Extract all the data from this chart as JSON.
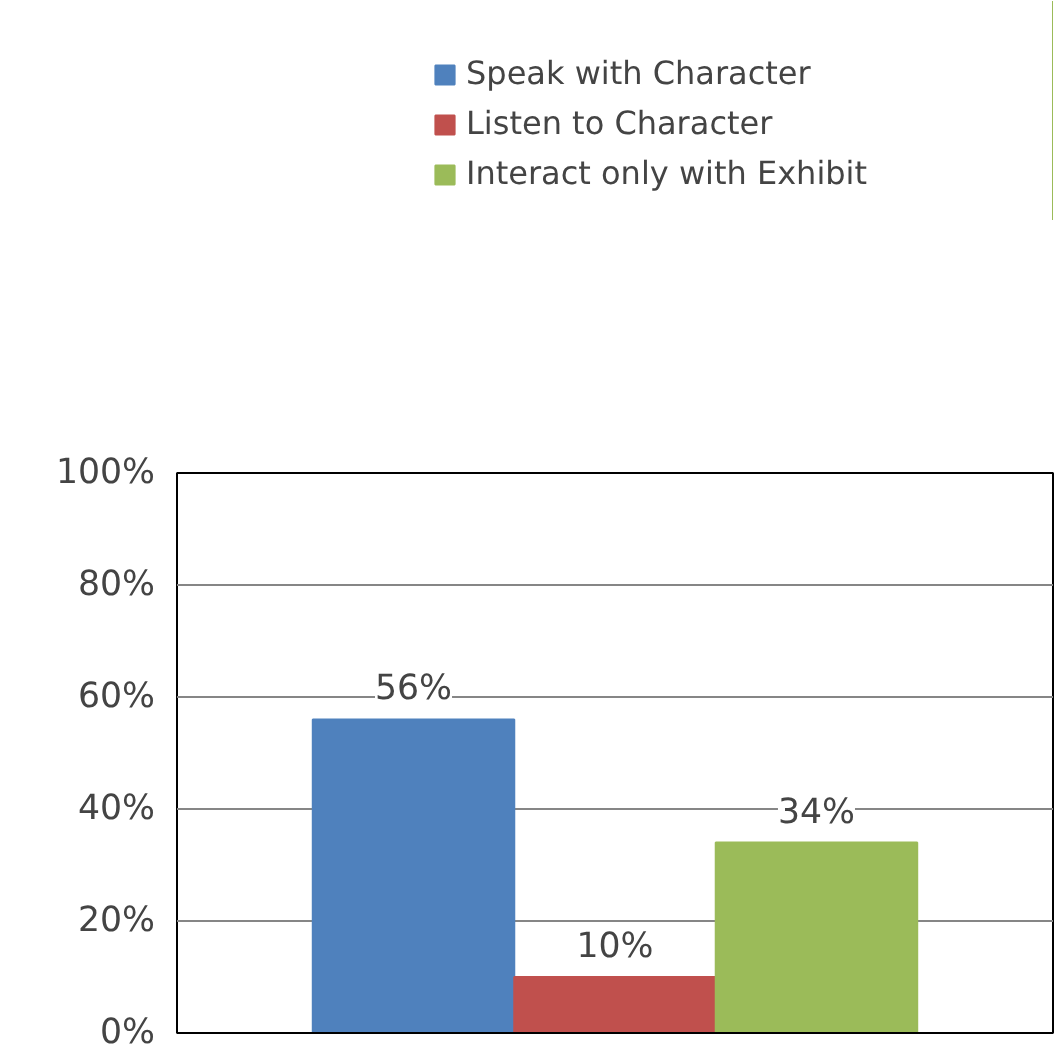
{
  "chart_data": {
    "type": "bar",
    "categories": [
      null
    ],
    "series": [
      {
        "name": "Speak with Character",
        "color": "#4f81bd",
        "values": [
          56
        ]
      },
      {
        "name": "Listen to Character",
        "color": "#c0504d",
        "values": [
          10
        ]
      },
      {
        "name": "Interact only with Exhibit",
        "color": "#9bbb59",
        "values": [
          34
        ]
      }
    ],
    "ylim": [
      0,
      100
    ],
    "yticks": [
      {
        "value": 0,
        "label": "0%"
      },
      {
        "value": 20,
        "label": "20%"
      },
      {
        "value": 40,
        "label": "40%"
      },
      {
        "value": 60,
        "label": "60%"
      },
      {
        "value": 80,
        "label": "80%"
      },
      {
        "value": 100,
        "label": "100%"
      }
    ],
    "grid": "y",
    "legend": "top",
    "value_labels": [
      [
        "56%"
      ],
      [
        "10%"
      ],
      [
        "34%"
      ]
    ]
  }
}
